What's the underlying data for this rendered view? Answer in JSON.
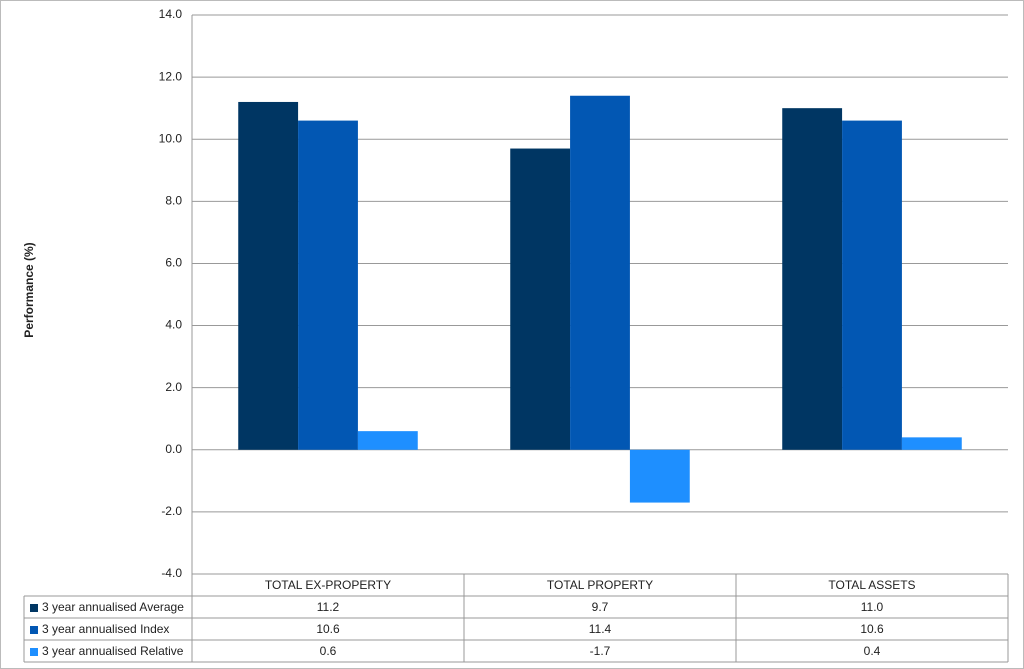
{
  "chart_data": {
    "type": "bar",
    "y_label": "Performance (%)",
    "categories": [
      "TOTAL EX-PROPERTY",
      "TOTAL PROPERTY",
      "TOTAL ASSETS"
    ],
    "series": [
      {
        "name": "3 year annualised Average",
        "color": "#003663",
        "values": [
          11.2,
          9.7,
          11.0
        ],
        "value_labels": [
          "11.2",
          "9.7",
          "11.0"
        ]
      },
      {
        "name": "3 year annualised Index",
        "color": "#0257b3",
        "values": [
          10.6,
          11.4,
          10.6
        ]
      },
      {
        "name": "3 year annualised Relative",
        "color": "#1e8fff",
        "values": [
          0.6,
          -1.7,
          0.4
        ]
      }
    ],
    "ylim": [
      -4,
      14
    ],
    "yticks": [
      {
        "value": -4,
        "label": "-4.0"
      },
      {
        "value": -2,
        "label": "-2.0"
      },
      {
        "value": 0,
        "label": "0.0"
      },
      {
        "value": 2,
        "label": "2.0"
      },
      {
        "value": 4,
        "label": "4.0"
      },
      {
        "value": 6,
        "label": "6.0"
      },
      {
        "value": 8,
        "label": "8.0"
      },
      {
        "value": 10,
        "label": "10.0"
      },
      {
        "value": 12,
        "label": "12.0"
      },
      {
        "value": 14,
        "label": "14.0"
      }
    ],
    "grid": true
  }
}
